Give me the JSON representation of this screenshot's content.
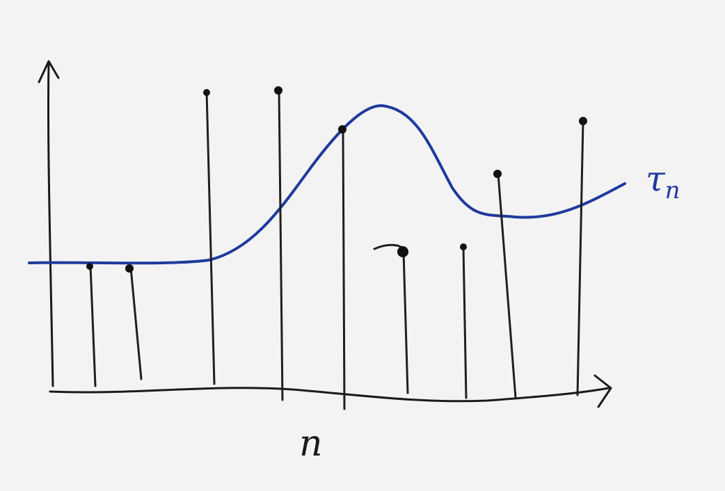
{
  "axis_labels": {
    "x": "n",
    "curve": "τ",
    "curve_sub": "n"
  },
  "colors": {
    "curve": "#1f3a9e",
    "ink": "#1a1a1a",
    "paper": "#f3f3f3"
  }
}
